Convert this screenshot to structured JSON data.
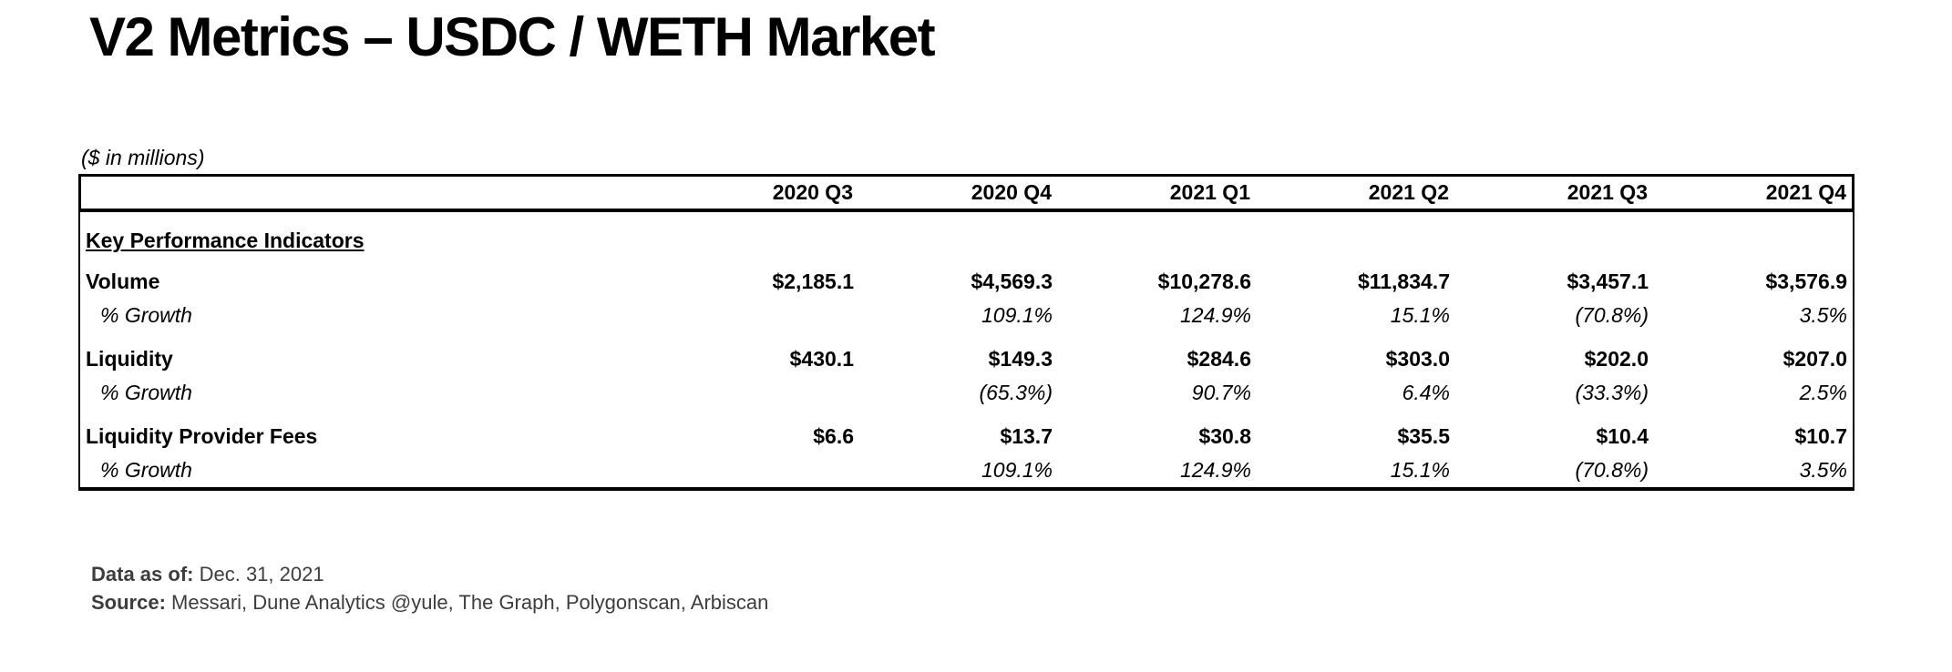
{
  "page": {
    "title": "V2 Metrics – USDC / WETH Market",
    "units_note": "($ in millions)"
  },
  "table": {
    "columns": [
      "2020 Q3",
      "2020 Q4",
      "2021 Q1",
      "2021 Q2",
      "2021 Q3",
      "2021 Q4"
    ],
    "section_header": "Key Performance Indicators",
    "groups": [
      {
        "metric": "Volume",
        "values": [
          "$2,185.1",
          "$4,569.3",
          "$10,278.6",
          "$11,834.7",
          "$3,457.1",
          "$3,576.9"
        ],
        "growth_label": "% Growth",
        "growth_values": [
          "",
          "109.1%",
          "124.9%",
          "15.1%",
          "(70.8%)",
          "3.5%"
        ]
      },
      {
        "metric": "Liquidity",
        "values": [
          "$430.1",
          "$149.3",
          "$284.6",
          "$303.0",
          "$202.0",
          "$207.0"
        ],
        "growth_label": "% Growth",
        "growth_values": [
          "",
          "(65.3%)",
          "90.7%",
          "6.4%",
          "(33.3%)",
          "2.5%"
        ]
      },
      {
        "metric": "Liquidity Provider Fees",
        "values": [
          "$6.6",
          "$13.7",
          "$30.8",
          "$35.5",
          "$10.4",
          "$10.7"
        ],
        "growth_label": "% Growth",
        "growth_values": [
          "",
          "109.1%",
          "124.9%",
          "15.1%",
          "(70.8%)",
          "3.5%"
        ]
      }
    ]
  },
  "footer": {
    "data_as_of_label": "Data as of:",
    "data_as_of_value": " Dec. 31, 2021",
    "source_label": "Source:",
    "source_value": " Messari, Dune Analytics @yule, The Graph, Polygonscan, Arbiscan"
  }
}
